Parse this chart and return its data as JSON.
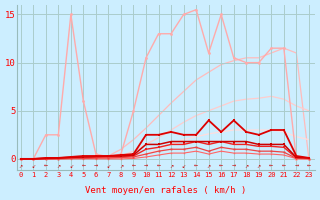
{
  "x": [
    0,
    1,
    2,
    3,
    4,
    5,
    6,
    7,
    8,
    9,
    10,
    11,
    12,
    13,
    14,
    15,
    16,
    17,
    18,
    19,
    20,
    21,
    22,
    23
  ],
  "background_color": "#cceeff",
  "grid_color": "#aacccc",
  "xlabel": "Vent moyen/en rafales ( km/h )",
  "ylim": [
    -1.2,
    16
  ],
  "xlim": [
    -0.3,
    23.5
  ],
  "yticks": [
    0,
    5,
    10,
    15
  ],
  "lines": [
    {
      "comment": "light pink spiky line - peaks at 4=15, then rises again 11-17",
      "y": [
        0,
        0,
        2.5,
        2.5,
        15,
        6,
        0.5,
        0.2,
        0.5,
        5,
        10.5,
        13,
        13,
        15,
        15.5,
        11,
        15,
        10.5,
        10,
        10,
        11.5,
        11.5,
        0,
        0
      ],
      "color": "#ffaaaa",
      "lw": 1.0,
      "marker": "o",
      "ms": 2.0,
      "zorder": 2
    },
    {
      "comment": "smooth light curve - rising from ~x=7 to x=21, peak ~11.5",
      "y": [
        0,
        0,
        0,
        0,
        0,
        0,
        0,
        0.3,
        1.0,
        2.0,
        3.2,
        4.5,
        5.8,
        7.0,
        8.2,
        9.0,
        9.8,
        10.2,
        10.5,
        10.5,
        11.0,
        11.5,
        11.0,
        0
      ],
      "color": "#ffbbbb",
      "lw": 0.9,
      "marker": null,
      "ms": 0,
      "zorder": 1
    },
    {
      "comment": "smooth light curve - rising then curving down, peak ~6.5 at x=20",
      "y": [
        0,
        0,
        0,
        0,
        0,
        0,
        0,
        0,
        0.3,
        0.8,
        1.5,
        2.2,
        3.0,
        3.8,
        4.5,
        5.0,
        5.5,
        6.0,
        6.2,
        6.3,
        6.5,
        6.2,
        5.5,
        5.0
      ],
      "color": "#ffcccc",
      "lw": 0.9,
      "marker": null,
      "ms": 0,
      "zorder": 1
    },
    {
      "comment": "smooth lighter curve - peak ~3 at x=19-20",
      "y": [
        0,
        0,
        0,
        0,
        0,
        0,
        0,
        0,
        0,
        0.2,
        0.5,
        1.0,
        1.5,
        2.0,
        2.3,
        2.6,
        2.8,
        3.0,
        3.0,
        3.0,
        3.0,
        2.8,
        2.3,
        2.0
      ],
      "color": "#ffdddd",
      "lw": 0.9,
      "marker": null,
      "ms": 0,
      "zorder": 1
    },
    {
      "comment": "dark red main line with markers - rises, stays ~2.5-3, peak ~4 at x=15,17",
      "y": [
        0,
        0,
        0.1,
        0.1,
        0.2,
        0.3,
        0.3,
        0.3,
        0.4,
        0.5,
        2.5,
        2.5,
        2.8,
        2.5,
        2.5,
        4.0,
        2.8,
        4.0,
        2.8,
        2.5,
        3.0,
        3.0,
        0.3,
        0.1
      ],
      "color": "#dd0000",
      "lw": 1.3,
      "marker": "s",
      "ms": 2.0,
      "zorder": 5
    },
    {
      "comment": "dark red line 2 - plateau around 1.5-2",
      "y": [
        0,
        0,
        0.05,
        0.1,
        0.15,
        0.2,
        0.25,
        0.3,
        0.3,
        0.4,
        1.5,
        1.5,
        1.8,
        1.8,
        1.8,
        1.8,
        1.8,
        1.8,
        1.8,
        1.5,
        1.5,
        1.5,
        0.15,
        0.1
      ],
      "color": "#cc0000",
      "lw": 1.1,
      "marker": "s",
      "ms": 1.8,
      "zorder": 4
    },
    {
      "comment": "red line 3 - plateau around 1-1.5",
      "y": [
        0,
        0,
        0,
        0.05,
        0.1,
        0.1,
        0.15,
        0.2,
        0.2,
        0.3,
        1.0,
        1.2,
        1.5,
        1.5,
        1.8,
        1.5,
        1.8,
        1.5,
        1.5,
        1.3,
        1.3,
        1.2,
        0.1,
        0.05
      ],
      "color": "#ee2222",
      "lw": 1.0,
      "marker": "s",
      "ms": 1.5,
      "zorder": 3
    },
    {
      "comment": "red line 4 - very low plateau around 0.5-1",
      "y": [
        0,
        0,
        0,
        0,
        0.05,
        0.05,
        0.1,
        0.1,
        0.15,
        0.2,
        0.5,
        0.8,
        1.0,
        1.0,
        1.2,
        0.8,
        1.2,
        1.0,
        1.0,
        0.8,
        0.8,
        0.7,
        0.05,
        0.02
      ],
      "color": "#ee4444",
      "lw": 0.9,
      "marker": "s",
      "ms": 1.3,
      "zorder": 3
    },
    {
      "comment": "very faint bottom line - near 0 throughout",
      "y": [
        0,
        0,
        0,
        0,
        0,
        0,
        0,
        0,
        0,
        0.05,
        0.2,
        0.4,
        0.6,
        0.6,
        0.8,
        0.5,
        0.8,
        0.6,
        0.6,
        0.5,
        0.5,
        0.4,
        0.02,
        0
      ],
      "color": "#ff6666",
      "lw": 0.8,
      "marker": "s",
      "ms": 1.0,
      "zorder": 2
    }
  ],
  "wind_arrows": [
    "↗",
    "↙",
    "←",
    "↗",
    "↙",
    "←",
    "→",
    "↙",
    "↗",
    "←",
    "→",
    "←",
    "↗",
    "↙",
    "←",
    "↗",
    "←",
    "→",
    "↗",
    "↗",
    "←",
    "←",
    "→",
    "←"
  ]
}
